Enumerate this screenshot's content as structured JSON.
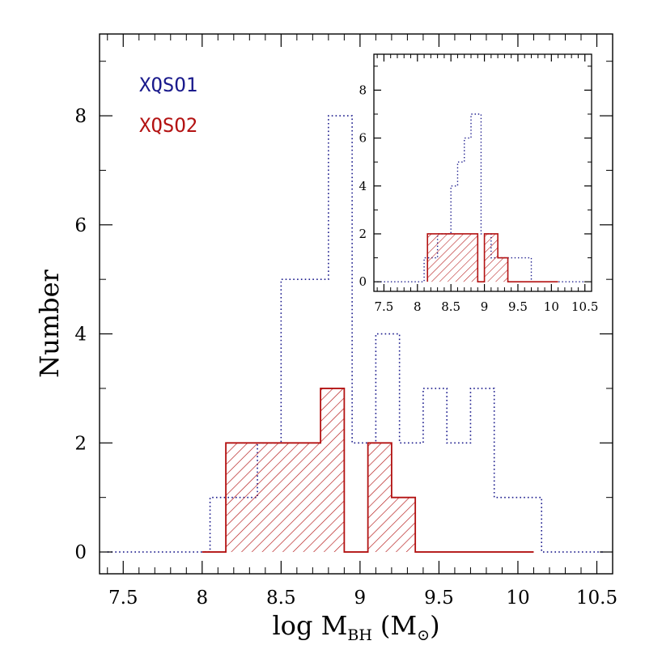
{
  "chart_data": {
    "type": "histogram",
    "xlabel": {
      "main": "log M",
      "sub": "BH",
      "unit": "(M",
      "unit_sub": "⊙",
      "close": ")"
    },
    "ylabel": "Number",
    "xlim": [
      7.35,
      10.6
    ],
    "ylim": [
      -0.4,
      9.5
    ],
    "xticks": [
      "7.5",
      "8",
      "8.5",
      "9",
      "9.5",
      "10",
      "10.5"
    ],
    "yticks": [
      "0",
      "2",
      "4",
      "6",
      "8"
    ],
    "legend": [
      {
        "label": "XQSO1",
        "color": "#1a1a8c"
      },
      {
        "label": "XQSO2",
        "color": "#b31212"
      }
    ],
    "series": [
      {
        "name": "XQSO1",
        "style": "dotted",
        "color": "#1a1a8c",
        "steps": [
          {
            "x0": 7.4,
            "x1": 8.05,
            "y": 0
          },
          {
            "x0": 8.05,
            "x1": 8.35,
            "y": 1
          },
          {
            "x0": 8.35,
            "x1": 8.5,
            "y": 2
          },
          {
            "x0": 8.5,
            "x1": 8.8,
            "y": 5
          },
          {
            "x0": 8.8,
            "x1": 8.95,
            "y": 8
          },
          {
            "x0": 8.95,
            "x1": 9.1,
            "y": 2
          },
          {
            "x0": 9.1,
            "x1": 9.25,
            "y": 4
          },
          {
            "x0": 9.25,
            "x1": 9.4,
            "y": 2
          },
          {
            "x0": 9.4,
            "x1": 9.55,
            "y": 3
          },
          {
            "x0": 9.55,
            "x1": 9.7,
            "y": 2
          },
          {
            "x0": 9.7,
            "x1": 9.85,
            "y": 3
          },
          {
            "x0": 9.85,
            "x1": 10.15,
            "y": 1
          },
          {
            "x0": 10.15,
            "x1": 10.55,
            "y": 0
          }
        ]
      },
      {
        "name": "XQSO2",
        "style": "hatched",
        "color": "#b31212",
        "steps": [
          {
            "x0": 8.0,
            "x1": 8.15,
            "y": 0
          },
          {
            "x0": 8.15,
            "x1": 8.75,
            "y": 2
          },
          {
            "x0": 8.75,
            "x1": 8.9,
            "y": 3
          },
          {
            "x0": 8.9,
            "x1": 9.05,
            "y": 0
          },
          {
            "x0": 9.05,
            "x1": 9.2,
            "y": 2
          },
          {
            "x0": 9.2,
            "x1": 9.35,
            "y": 1
          },
          {
            "x0": 9.35,
            "x1": 10.1,
            "y": 0
          }
        ]
      }
    ],
    "inset": {
      "xlim": [
        7.35,
        10.6
      ],
      "ylim": [
        -0.4,
        9.5
      ],
      "xticks": [
        "7.5",
        "8",
        "8.5",
        "9",
        "9.5",
        "10",
        "10.5"
      ],
      "yticks": [
        "0",
        "2",
        "4",
        "6",
        "8"
      ],
      "series": [
        {
          "name": "XQSO1",
          "style": "dotted",
          "color": "#1a1a8c",
          "steps": [
            {
              "x0": 7.4,
              "x1": 8.1,
              "y": 0
            },
            {
              "x0": 8.1,
              "x1": 8.3,
              "y": 1
            },
            {
              "x0": 8.3,
              "x1": 8.5,
              "y": 2
            },
            {
              "x0": 8.5,
              "x1": 8.6,
              "y": 4
            },
            {
              "x0": 8.6,
              "x1": 8.7,
              "y": 5
            },
            {
              "x0": 8.7,
              "x1": 8.8,
              "y": 6
            },
            {
              "x0": 8.8,
              "x1": 8.95,
              "y": 7
            },
            {
              "x0": 8.95,
              "x1": 9.1,
              "y": 2
            },
            {
              "x0": 9.1,
              "x1": 9.7,
              "y": 1
            },
            {
              "x0": 9.7,
              "x1": 10.5,
              "y": 0
            }
          ]
        },
        {
          "name": "XQSO2",
          "style": "hatched",
          "color": "#b31212",
          "steps": [
            {
              "x0": 8.15,
              "x1": 8.9,
              "y": 2
            },
            {
              "x0": 8.9,
              "x1": 9.0,
              "y": 0
            },
            {
              "x0": 9.0,
              "x1": 9.2,
              "y": 2
            },
            {
              "x0": 9.2,
              "x1": 9.35,
              "y": 1
            },
            {
              "x0": 9.35,
              "x1": 10.1,
              "y": 0
            }
          ]
        }
      ]
    }
  }
}
